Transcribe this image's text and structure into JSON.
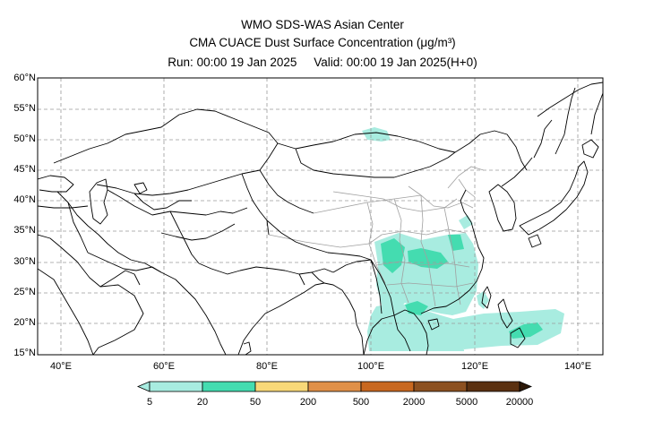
{
  "header": {
    "line1": "WMO SDS-WAS Asian Center",
    "line2": "CMA CUACE Dust Surface Concentration (μg/m³)",
    "run_label": "Run: 00:00 19 Jan 2025",
    "valid_label": "Valid: 00:00 19 Jan 2025(H+0)"
  },
  "map": {
    "lat_labels": [
      "60°N",
      "55°N",
      "50°N",
      "45°N",
      "40°N",
      "35°N",
      "30°N",
      "25°N",
      "20°N",
      "15°N"
    ],
    "lon_labels": [
      "40°E",
      "60°E",
      "80°E",
      "100°E",
      "120°E",
      "140°E"
    ],
    "grid": "dashed"
  },
  "colorbar": {
    "ticks": [
      "5",
      "20",
      "50",
      "200",
      "500",
      "2000",
      "5000",
      "20000"
    ],
    "colors": [
      "#a8ece0",
      "#44dcb0",
      "#f8d878",
      "#e09048",
      "#c86820",
      "#8c5020",
      "#5a3010",
      "#2c1808"
    ],
    "extend": "both"
  }
}
